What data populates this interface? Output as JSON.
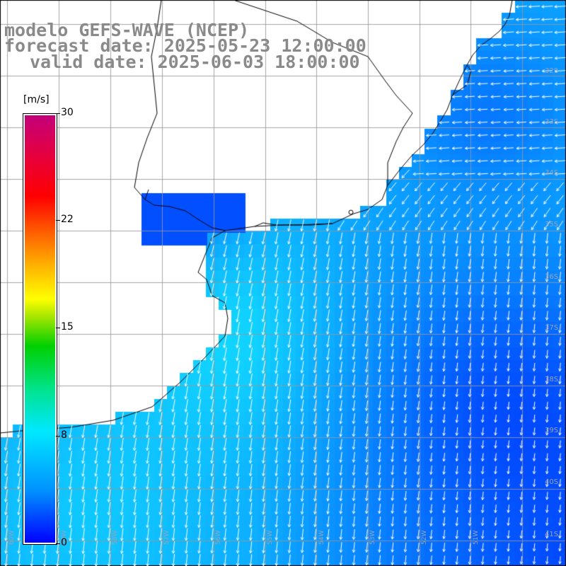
{
  "title": {
    "line1": "modelo GEFS-WAVE (NCEP)",
    "line2": "forecast date: 2025-05-23 12:00:00",
    "line3": "valid date: 2025-06-03 18:00:00"
  },
  "map": {
    "field": "wind speed (m/s) with direction arrows",
    "lat_labels": [
      "32S",
      "33S",
      "34S",
      "35S",
      "36S",
      "37S",
      "38S",
      "39S",
      "40S",
      "41S"
    ],
    "lon_labels": [
      "60W",
      "59W",
      "58W",
      "57W",
      "56W",
      "55W",
      "54W",
      "53W",
      "52W",
      "51W"
    ],
    "flow_direction": "arrows point toward the SSW off the coast, turning southward in the open sea; westward in the north-east"
  },
  "colorbar": {
    "unit": "[m/s]",
    "ticks": [
      "30",
      "22",
      "15",
      "8",
      "0"
    ],
    "min": 0,
    "max": 30
  },
  "colors": {
    "title": "#8a8a8a",
    "grid": "#9a9a9a",
    "coast": "#000000",
    "land": "#ffffff"
  }
}
